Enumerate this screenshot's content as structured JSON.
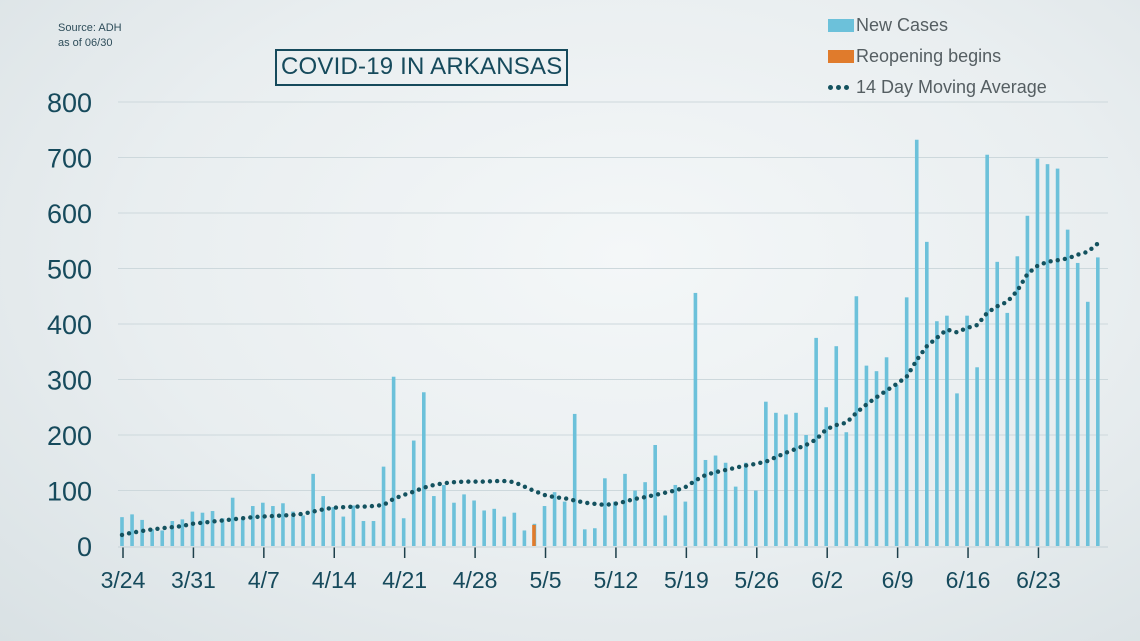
{
  "source_line1": "Source: ADH",
  "source_line2": "as of 06/30",
  "title": "COVID-19 IN ARKANSAS",
  "legend": {
    "new_cases": "New Cases",
    "reopening": "Reopening begins",
    "moving_avg": "14 Day Moving Average"
  },
  "colors": {
    "bar": "#6cc1da",
    "reopening": "#e07b2c",
    "moving_avg": "#14525f",
    "axis_text": "#164a5c",
    "grid": "#cdd8dc"
  },
  "chart_data": {
    "type": "bar",
    "title": "COVID-19 IN ARKANSAS",
    "xlabel": "",
    "ylabel": "",
    "ylim": [
      0,
      800
    ],
    "yticks": [
      0,
      100,
      200,
      300,
      400,
      500,
      600,
      700,
      800
    ],
    "grid": true,
    "legend_position": "top-right",
    "x_tick_labels": [
      {
        "date": "3/24",
        "label": "3/24"
      },
      {
        "date": "3/31",
        "label": "3/31"
      },
      {
        "date": "4/7",
        "label": "4/7"
      },
      {
        "date": "4/14",
        "label": "4/14"
      },
      {
        "date": "4/21",
        "label": "4/21"
      },
      {
        "date": "4/28",
        "label": "4/28"
      },
      {
        "date": "5/5",
        "label": "5/5"
      },
      {
        "date": "5/12",
        "label": "5/12"
      },
      {
        "date": "5/19",
        "label": "5/19"
      },
      {
        "date": "5/26",
        "label": "5/26"
      },
      {
        "date": "6/2",
        "label": "6/2"
      },
      {
        "date": "6/9",
        "label": "6/9"
      },
      {
        "date": "6/16",
        "label": "6/16"
      },
      {
        "date": "6/23",
        "label": "6/23"
      }
    ],
    "categories": [
      "3/24",
      "3/25",
      "3/26",
      "3/27",
      "3/28",
      "3/29",
      "3/30",
      "3/31",
      "4/1",
      "4/2",
      "4/3",
      "4/4",
      "4/5",
      "4/6",
      "4/7",
      "4/8",
      "4/9",
      "4/10",
      "4/11",
      "4/12",
      "4/13",
      "4/14",
      "4/15",
      "4/16",
      "4/17",
      "4/18",
      "4/19",
      "4/20",
      "4/21",
      "4/22",
      "4/23",
      "4/24",
      "4/25",
      "4/26",
      "4/27",
      "4/28",
      "4/29",
      "4/30",
      "5/1",
      "5/2",
      "5/3",
      "5/4",
      "5/5",
      "5/6",
      "5/7",
      "5/8",
      "5/9",
      "5/10",
      "5/11",
      "5/12",
      "5/13",
      "5/14",
      "5/15",
      "5/16",
      "5/17",
      "5/18",
      "5/19",
      "5/20",
      "5/21",
      "5/22",
      "5/23",
      "5/24",
      "5/25",
      "5/26",
      "5/27",
      "5/28",
      "5/29",
      "5/30",
      "5/31",
      "6/1",
      "6/2",
      "6/3",
      "6/4",
      "6/5",
      "6/6",
      "6/7",
      "6/8",
      "6/9",
      "6/10",
      "6/11",
      "6/12",
      "6/13",
      "6/14",
      "6/15",
      "6/16",
      "6/17",
      "6/18",
      "6/19",
      "6/20",
      "6/21",
      "6/22",
      "6/23",
      "6/24",
      "6/25",
      "6/26",
      "6/27",
      "6/28",
      "6/29"
    ],
    "reopening_date": "5/4",
    "series": [
      {
        "name": "New Cases",
        "type": "bar",
        "values": [
          52,
          57,
          47,
          30,
          28,
          45,
          48,
          62,
          60,
          63,
          50,
          87,
          50,
          72,
          78,
          72,
          77,
          62,
          55,
          130,
          90,
          70,
          53,
          73,
          45,
          45,
          143,
          305,
          50,
          190,
          277,
          90,
          110,
          78,
          93,
          82,
          64,
          67,
          53,
          60,
          28,
          40,
          72,
          97,
          80,
          238,
          30,
          32,
          122,
          80,
          130,
          100,
          115,
          182,
          55,
          110,
          80,
          456,
          155,
          163,
          150,
          107,
          150,
          100,
          260,
          240,
          237,
          240,
          200,
          375,
          250,
          360,
          205,
          450,
          325,
          315,
          340,
          290,
          448,
          732,
          548,
          405,
          415,
          275,
          415,
          322,
          705,
          512,
          420,
          522,
          595,
          698,
          688,
          680,
          570,
          510,
          440,
          520
        ]
      },
      {
        "name": "14 Day Moving Average",
        "type": "line",
        "values": [
          20,
          24,
          27,
          30,
          32,
          34,
          36,
          40,
          42,
          44,
          46,
          48,
          50,
          52,
          53,
          54,
          55,
          56,
          58,
          62,
          66,
          69,
          70,
          71,
          71,
          72,
          74,
          85,
          92,
          98,
          105,
          110,
          113,
          115,
          116,
          116,
          116,
          117,
          117,
          115,
          107,
          99,
          92,
          88,
          86,
          82,
          78,
          76,
          74,
          76,
          80,
          85,
          88,
          92,
          96,
          100,
          106,
          118,
          128,
          133,
          137,
          141,
          145,
          148,
          152,
          160,
          168,
          175,
          182,
          192,
          210,
          218,
          222,
          240,
          255,
          268,
          280,
          292,
          305,
          335,
          360,
          375,
          390,
          385,
          393,
          398,
          420,
          432,
          440,
          460,
          490,
          505,
          512,
          515,
          518,
          525,
          530,
          545
        ]
      }
    ]
  }
}
